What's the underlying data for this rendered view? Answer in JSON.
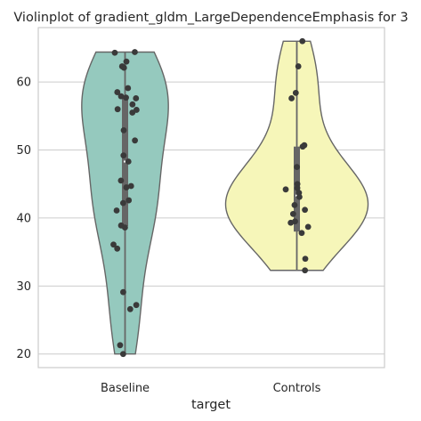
{
  "chart_data": {
    "type": "violin",
    "title": "Violinplot of gradient_gldm_LargeDependenceEmphasis for 3",
    "xlabel": "target",
    "ylabel": "",
    "categories": [
      "Baseline",
      "Controls"
    ],
    "ylim": [
      18,
      68
    ],
    "yticks": [
      20,
      30,
      40,
      50,
      60
    ],
    "grid": true,
    "colors": {
      "Baseline": "#95c9be",
      "Controls": "#f6f6b9",
      "outline": "#666666",
      "points": "#3a3a3a",
      "grid": "#cccccc"
    },
    "series": [
      {
        "category": "Baseline",
        "range": [
          20.0,
          64.4
        ],
        "quartiles": [
          38.8,
          48.3,
          58.0
        ],
        "points": [
          64.4,
          64.3,
          63.0,
          62.3,
          62.1,
          59.1,
          58.5,
          57.9,
          57.7,
          57.6,
          56.7,
          56.0,
          55.9,
          55.5,
          52.9,
          51.4,
          49.2,
          48.3,
          45.5,
          44.7,
          44.5,
          42.6,
          42.2,
          41.1,
          38.9,
          38.6,
          36.1,
          35.5,
          29.1,
          27.2,
          26.6,
          21.3,
          20.0
        ]
      },
      {
        "category": "Controls",
        "range": [
          32.3,
          66.0
        ],
        "quartiles": [
          38.0,
          43.3,
          50.5
        ],
        "points": [
          66.0,
          62.3,
          58.4,
          57.6,
          50.7,
          50.5,
          47.5,
          45.0,
          44.4,
          44.2,
          43.7,
          43.1,
          41.9,
          41.2,
          40.6,
          39.5,
          39.3,
          38.7,
          37.8,
          34.0,
          32.3
        ]
      }
    ]
  }
}
